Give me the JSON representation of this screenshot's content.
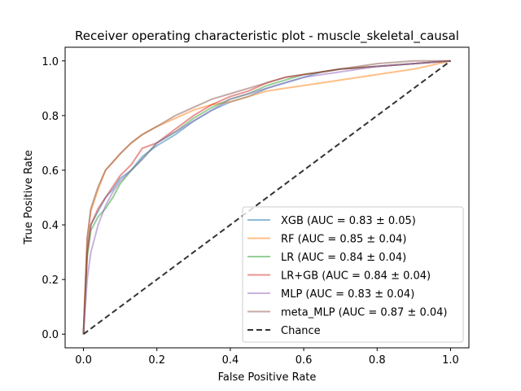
{
  "chart_data": {
    "type": "line",
    "title": "Receiver operating characteristic plot - muscle_skeletal_causal",
    "xlabel": "False Positive Rate",
    "ylabel": "True Positive Rate",
    "xlim": [
      -0.05,
      1.05
    ],
    "ylim": [
      -0.05,
      1.05
    ],
    "xticks": [
      "0.0",
      "0.2",
      "0.4",
      "0.6",
      "0.8",
      "1.0"
    ],
    "yticks": [
      "0.0",
      "0.2",
      "0.4",
      "0.6",
      "0.8",
      "1.0"
    ],
    "grid": false,
    "legend_position": "lower-right",
    "series": [
      {
        "name": "XGB (AUC = 0.83 ± 0.05)",
        "color": "#1f77b4",
        "x": [
          0,
          0.01,
          0.02,
          0.04,
          0.06,
          0.08,
          0.1,
          0.13,
          0.16,
          0.2,
          0.25,
          0.3,
          0.35,
          0.4,
          0.45,
          0.5,
          0.55,
          0.6,
          0.65,
          0.7,
          0.8,
          0.9,
          1.0
        ],
        "y": [
          0,
          0.3,
          0.4,
          0.45,
          0.5,
          0.53,
          0.57,
          0.6,
          0.65,
          0.69,
          0.73,
          0.78,
          0.82,
          0.85,
          0.87,
          0.9,
          0.92,
          0.94,
          0.96,
          0.97,
          0.98,
          0.99,
          1.0
        ]
      },
      {
        "name": "RF (AUC = 0.85 ± 0.04)",
        "color": "#ff7f0e",
        "x": [
          0,
          0.01,
          0.02,
          0.04,
          0.06,
          0.08,
          0.1,
          0.13,
          0.16,
          0.2,
          0.25,
          0.3,
          0.35,
          0.4,
          0.45,
          0.5,
          0.55,
          0.6,
          0.65,
          0.7,
          0.8,
          0.9,
          1.0
        ],
        "y": [
          0,
          0.35,
          0.45,
          0.53,
          0.6,
          0.63,
          0.66,
          0.7,
          0.73,
          0.76,
          0.79,
          0.82,
          0.84,
          0.85,
          0.87,
          0.89,
          0.9,
          0.91,
          0.92,
          0.93,
          0.95,
          0.97,
          1.0
        ]
      },
      {
        "name": "LR (AUC = 0.84 ± 0.04)",
        "color": "#2ca02c",
        "x": [
          0,
          0.01,
          0.02,
          0.04,
          0.06,
          0.08,
          0.1,
          0.13,
          0.16,
          0.2,
          0.25,
          0.3,
          0.35,
          0.4,
          0.45,
          0.5,
          0.55,
          0.6,
          0.65,
          0.7,
          0.8,
          0.9,
          1.0
        ],
        "y": [
          0,
          0.28,
          0.38,
          0.43,
          0.46,
          0.5,
          0.55,
          0.6,
          0.64,
          0.7,
          0.74,
          0.79,
          0.83,
          0.86,
          0.88,
          0.91,
          0.93,
          0.95,
          0.96,
          0.97,
          0.98,
          0.99,
          1.0
        ]
      },
      {
        "name": "LR+GB (AUC = 0.84 ± 0.04)",
        "color": "#d62728",
        "x": [
          0,
          0.01,
          0.02,
          0.04,
          0.06,
          0.08,
          0.1,
          0.13,
          0.16,
          0.2,
          0.25,
          0.3,
          0.35,
          0.4,
          0.45,
          0.5,
          0.55,
          0.6,
          0.65,
          0.7,
          0.8,
          0.9,
          1.0
        ],
        "y": [
          0,
          0.3,
          0.4,
          0.46,
          0.5,
          0.54,
          0.58,
          0.62,
          0.68,
          0.7,
          0.75,
          0.8,
          0.84,
          0.87,
          0.89,
          0.92,
          0.94,
          0.95,
          0.96,
          0.97,
          0.98,
          0.99,
          1.0
        ]
      },
      {
        "name": "MLP (AUC = 0.83 ± 0.04)",
        "color": "#9467bd",
        "x": [
          0,
          0.01,
          0.02,
          0.04,
          0.06,
          0.08,
          0.1,
          0.13,
          0.16,
          0.2,
          0.25,
          0.3,
          0.35,
          0.4,
          0.45,
          0.5,
          0.55,
          0.6,
          0.65,
          0.7,
          0.8,
          0.9,
          1.0
        ],
        "y": [
          0,
          0.2,
          0.3,
          0.4,
          0.47,
          0.52,
          0.56,
          0.6,
          0.64,
          0.7,
          0.74,
          0.78,
          0.82,
          0.86,
          0.88,
          0.9,
          0.92,
          0.94,
          0.95,
          0.96,
          0.98,
          0.99,
          1.0
        ]
      },
      {
        "name": "meta_MLP (AUC = 0.87 ± 0.04)",
        "color": "#8c564b",
        "x": [
          0,
          0.01,
          0.02,
          0.04,
          0.06,
          0.08,
          0.1,
          0.13,
          0.16,
          0.2,
          0.25,
          0.3,
          0.35,
          0.4,
          0.45,
          0.5,
          0.55,
          0.6,
          0.65,
          0.7,
          0.8,
          0.9,
          1.0
        ],
        "y": [
          0,
          0.35,
          0.46,
          0.54,
          0.6,
          0.63,
          0.66,
          0.7,
          0.73,
          0.76,
          0.8,
          0.83,
          0.86,
          0.88,
          0.9,
          0.92,
          0.94,
          0.95,
          0.96,
          0.97,
          0.99,
          1.0,
          1.0
        ]
      },
      {
        "name": "Chance",
        "color": "#333333",
        "dashed": true,
        "x": [
          0,
          1
        ],
        "y": [
          0,
          1
        ]
      }
    ]
  }
}
